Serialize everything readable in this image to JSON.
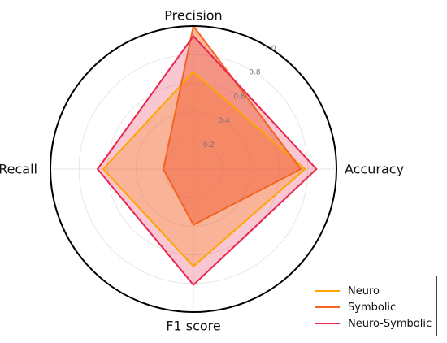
{
  "chart_data": {
    "type": "radar",
    "axes": [
      "Accuracy",
      "Precision",
      "Recall",
      "F1 score"
    ],
    "rticks": [
      "0.2",
      "0.4",
      "0.6",
      "0.8",
      "1.0"
    ],
    "rlim": [
      0,
      1
    ],
    "grid": true,
    "legend_position": "bottom-right",
    "series": [
      {
        "name": "Neuro",
        "color": "#FFA500",
        "values": [
          0.78,
          0.68,
          0.63,
          0.68
        ]
      },
      {
        "name": "Symbolic",
        "color": "#F26522",
        "values": [
          0.75,
          1.0,
          0.21,
          0.39
        ]
      },
      {
        "name": "Neuro-Symbolic",
        "color": "#E8264E",
        "values": [
          0.86,
          0.93,
          0.67,
          0.81
        ]
      }
    ]
  }
}
